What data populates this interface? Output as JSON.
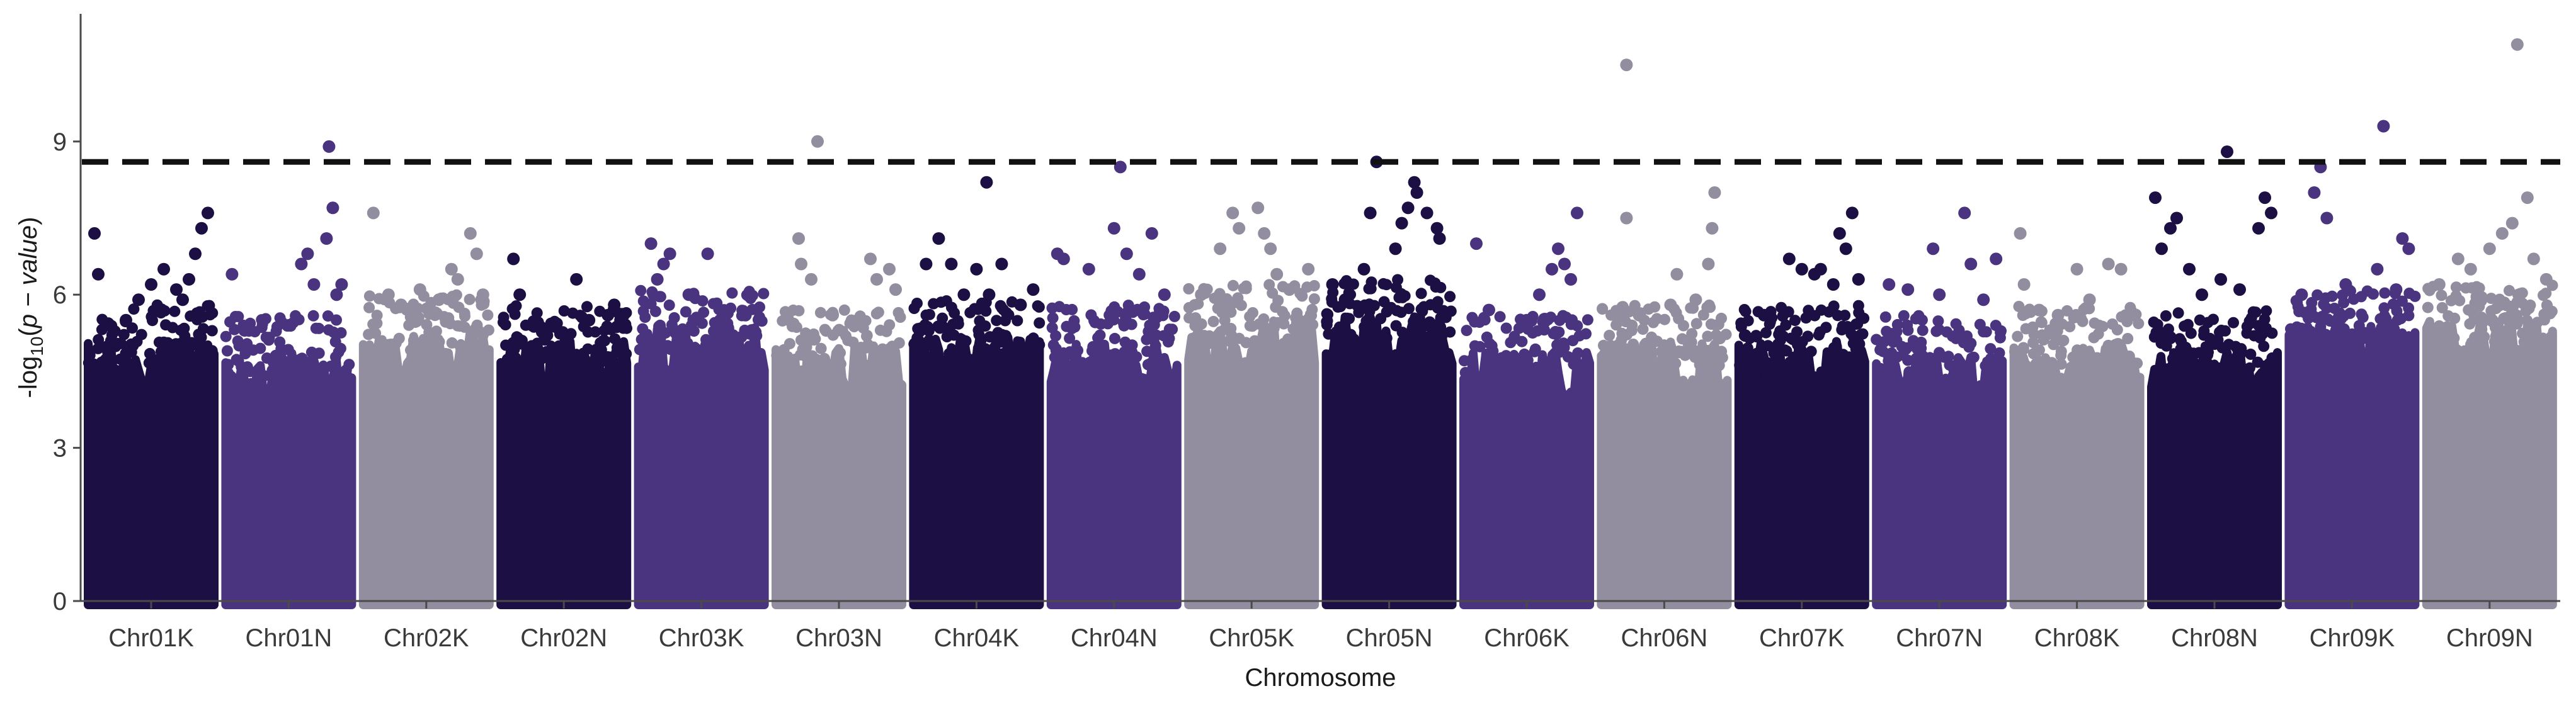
{
  "chart_data": {
    "type": "scatter",
    "subtype": "manhattan",
    "title": "",
    "xlabel": "Chromosome",
    "ylabel_parts": {
      "prefix": "-log",
      "subscript": "10",
      "open": "(",
      "italic": "p − value",
      "close": ")"
    },
    "ylim": [
      0,
      11.5
    ],
    "yticks": [
      0,
      3,
      6,
      9
    ],
    "grid": false,
    "legend": "none",
    "threshold": {
      "value": 8.6,
      "style": "dashed",
      "color": "#111111"
    },
    "palette": [
      "#1b0f43",
      "#4a3480",
      "#928e9f"
    ],
    "categories": [
      "Chr01K",
      "Chr01N",
      "Chr02K",
      "Chr02N",
      "Chr03K",
      "Chr03N",
      "Chr04K",
      "Chr04N",
      "Chr05K",
      "Chr05N",
      "Chr06K",
      "Chr06N",
      "Chr07K",
      "Chr07N",
      "Chr08K",
      "Chr08N",
      "Chr09K",
      "Chr09N"
    ],
    "series": [
      {
        "category": "Chr01K",
        "color_index": 0,
        "bulk_top": 4.6,
        "peak": 7.6,
        "points": [
          [
            0.05,
            7.2
          ],
          [
            0.08,
            6.4
          ],
          [
            0.4,
            5.9
          ],
          [
            0.5,
            6.2
          ],
          [
            0.6,
            6.5
          ],
          [
            0.7,
            6.1
          ],
          [
            0.75,
            5.9
          ],
          [
            0.8,
            6.3
          ],
          [
            0.85,
            6.8
          ],
          [
            0.9,
            7.3
          ],
          [
            0.95,
            7.6
          ],
          [
            0.3,
            5.5
          ]
        ]
      },
      {
        "category": "Chr01N",
        "color_index": 1,
        "bulk_top": 4.4,
        "peak": 8.9,
        "points": [
          [
            0.05,
            6.4
          ],
          [
            0.15,
            5.3
          ],
          [
            0.5,
            5.4
          ],
          [
            0.6,
            6.6
          ],
          [
            0.65,
            6.8
          ],
          [
            0.7,
            6.2
          ],
          [
            0.8,
            7.1
          ],
          [
            0.85,
            7.7
          ],
          [
            0.82,
            8.9
          ],
          [
            0.88,
            6.0
          ],
          [
            0.92,
            6.2
          ],
          [
            0.4,
            4.8
          ]
        ]
      },
      {
        "category": "Chr02K",
        "color_index": 2,
        "bulk_top": 4.8,
        "peak": 7.6,
        "points": [
          [
            0.08,
            7.6
          ],
          [
            0.2,
            6.0
          ],
          [
            0.3,
            5.8
          ],
          [
            0.45,
            6.1
          ],
          [
            0.6,
            5.9
          ],
          [
            0.7,
            6.5
          ],
          [
            0.75,
            6.3
          ],
          [
            0.85,
            7.2
          ],
          [
            0.9,
            6.8
          ],
          [
            0.95,
            6.0
          ]
        ]
      },
      {
        "category": "Chr02N",
        "color_index": 0,
        "bulk_top": 4.6,
        "peak": 6.7,
        "points": [
          [
            0.1,
            6.7
          ],
          [
            0.15,
            6.0
          ],
          [
            0.25,
            5.4
          ],
          [
            0.6,
            6.3
          ],
          [
            0.7,
            5.5
          ],
          [
            0.85,
            5.6
          ],
          [
            0.9,
            5.8
          ],
          [
            0.95,
            5.5
          ]
        ]
      },
      {
        "category": "Chr03K",
        "color_index": 1,
        "bulk_top": 4.9,
        "peak": 7.0,
        "points": [
          [
            0.1,
            7.0
          ],
          [
            0.15,
            6.3
          ],
          [
            0.2,
            6.6
          ],
          [
            0.25,
            6.8
          ],
          [
            0.4,
            6.0
          ],
          [
            0.55,
            6.8
          ],
          [
            0.65,
            5.5
          ],
          [
            0.75,
            5.2
          ],
          [
            0.85,
            5.6
          ],
          [
            0.9,
            5.3
          ]
        ]
      },
      {
        "category": "Chr03N",
        "color_index": 2,
        "bulk_top": 4.5,
        "peak": 9.0,
        "points": [
          [
            0.18,
            7.1
          ],
          [
            0.2,
            6.6
          ],
          [
            0.28,
            6.3
          ],
          [
            0.33,
            9.0
          ],
          [
            0.45,
            5.6
          ],
          [
            0.65,
            5.5
          ],
          [
            0.75,
            6.7
          ],
          [
            0.8,
            6.3
          ],
          [
            0.9,
            6.5
          ],
          [
            0.95,
            6.1
          ]
        ]
      },
      {
        "category": "Chr04K",
        "color_index": 0,
        "bulk_top": 4.7,
        "peak": 8.2,
        "points": [
          [
            0.1,
            6.6
          ],
          [
            0.2,
            7.1
          ],
          [
            0.3,
            6.6
          ],
          [
            0.4,
            6.0
          ],
          [
            0.5,
            6.5
          ],
          [
            0.6,
            6.0
          ],
          [
            0.7,
            6.6
          ],
          [
            0.58,
            8.2
          ],
          [
            0.85,
            5.8
          ],
          [
            0.95,
            6.1
          ]
        ]
      },
      {
        "category": "Chr04N",
        "color_index": 1,
        "bulk_top": 4.6,
        "peak": 8.5,
        "points": [
          [
            0.05,
            6.8
          ],
          [
            0.1,
            6.7
          ],
          [
            0.3,
            6.5
          ],
          [
            0.5,
            7.3
          ],
          [
            0.55,
            8.5
          ],
          [
            0.6,
            6.8
          ],
          [
            0.7,
            6.4
          ],
          [
            0.8,
            7.2
          ],
          [
            0.9,
            6.0
          ]
        ]
      },
      {
        "category": "Chr05K",
        "color_index": 2,
        "bulk_top": 5.0,
        "peak": 7.7,
        "points": [
          [
            0.1,
            6.0
          ],
          [
            0.25,
            6.9
          ],
          [
            0.35,
            7.6
          ],
          [
            0.4,
            7.3
          ],
          [
            0.55,
            7.7
          ],
          [
            0.6,
            7.2
          ],
          [
            0.65,
            6.9
          ],
          [
            0.7,
            6.4
          ],
          [
            0.8,
            6.1
          ],
          [
            0.95,
            6.5
          ]
        ]
      },
      {
        "category": "Chr05N",
        "color_index": 0,
        "bulk_top": 5.1,
        "peak": 8.6,
        "points": [
          [
            0.05,
            6.2
          ],
          [
            0.15,
            5.9
          ],
          [
            0.3,
            6.5
          ],
          [
            0.35,
            7.6
          ],
          [
            0.4,
            8.6
          ],
          [
            0.55,
            6.9
          ],
          [
            0.6,
            7.4
          ],
          [
            0.65,
            7.7
          ],
          [
            0.7,
            8.2
          ],
          [
            0.72,
            8.0
          ],
          [
            0.8,
            7.6
          ],
          [
            0.88,
            7.3
          ],
          [
            0.9,
            7.1
          ]
        ]
      },
      {
        "category": "Chr06K",
        "color_index": 1,
        "bulk_top": 4.4,
        "peak": 7.6,
        "points": [
          [
            0.1,
            7.0
          ],
          [
            0.2,
            5.7
          ],
          [
            0.5,
            5.5
          ],
          [
            0.6,
            6.0
          ],
          [
            0.7,
            6.5
          ],
          [
            0.75,
            6.9
          ],
          [
            0.8,
            6.6
          ],
          [
            0.85,
            6.3
          ],
          [
            0.9,
            7.6
          ]
        ]
      },
      {
        "category": "Chr06N",
        "color_index": 2,
        "bulk_top": 4.6,
        "peak": 10.5,
        "points": [
          [
            0.2,
            10.5
          ],
          [
            0.2,
            7.5
          ],
          [
            0.3,
            5.6
          ],
          [
            0.55,
            5.8
          ],
          [
            0.6,
            6.4
          ],
          [
            0.75,
            5.9
          ],
          [
            0.85,
            6.6
          ],
          [
            0.88,
            7.3
          ],
          [
            0.9,
            8.0
          ]
        ]
      },
      {
        "category": "Chr07K",
        "color_index": 0,
        "bulk_top": 4.6,
        "peak": 7.6,
        "points": [
          [
            0.05,
            5.2
          ],
          [
            0.2,
            5.6
          ],
          [
            0.4,
            6.7
          ],
          [
            0.5,
            6.5
          ],
          [
            0.6,
            6.4
          ],
          [
            0.65,
            6.5
          ],
          [
            0.75,
            6.2
          ],
          [
            0.8,
            7.2
          ],
          [
            0.85,
            6.9
          ],
          [
            0.9,
            7.6
          ],
          [
            0.95,
            6.3
          ]
        ]
      },
      {
        "category": "Chr07N",
        "color_index": 1,
        "bulk_top": 4.4,
        "peak": 7.6,
        "points": [
          [
            0.1,
            6.2
          ],
          [
            0.25,
            6.1
          ],
          [
            0.45,
            6.9
          ],
          [
            0.5,
            6.0
          ],
          [
            0.7,
            7.6
          ],
          [
            0.75,
            6.6
          ],
          [
            0.85,
            5.9
          ],
          [
            0.95,
            6.7
          ]
        ]
      },
      {
        "category": "Chr08K",
        "color_index": 2,
        "bulk_top": 4.6,
        "peak": 7.2,
        "points": [
          [
            0.05,
            7.2
          ],
          [
            0.08,
            6.2
          ],
          [
            0.2,
            5.7
          ],
          [
            0.35,
            5.6
          ],
          [
            0.5,
            6.5
          ],
          [
            0.6,
            5.9
          ],
          [
            0.75,
            6.6
          ],
          [
            0.85,
            6.5
          ],
          [
            0.95,
            5.6
          ]
        ]
      },
      {
        "category": "Chr08N",
        "color_index": 0,
        "bulk_top": 4.5,
        "peak": 8.8,
        "points": [
          [
            0.03,
            7.9
          ],
          [
            0.08,
            6.9
          ],
          [
            0.15,
            7.3
          ],
          [
            0.2,
            7.5
          ],
          [
            0.3,
            6.5
          ],
          [
            0.4,
            6.0
          ],
          [
            0.55,
            6.3
          ],
          [
            0.6,
            8.8
          ],
          [
            0.7,
            6.1
          ],
          [
            0.85,
            7.3
          ],
          [
            0.9,
            7.9
          ],
          [
            0.95,
            7.6
          ]
        ]
      },
      {
        "category": "Chr09K",
        "color_index": 1,
        "bulk_top": 4.9,
        "peak": 9.3,
        "points": [
          [
            0.1,
            6.0
          ],
          [
            0.2,
            8.0
          ],
          [
            0.25,
            8.5
          ],
          [
            0.3,
            7.5
          ],
          [
            0.45,
            6.2
          ],
          [
            0.7,
            6.5
          ],
          [
            0.75,
            9.3
          ],
          [
            0.85,
            6.1
          ],
          [
            0.9,
            7.1
          ],
          [
            0.95,
            6.9
          ]
        ]
      },
      {
        "category": "Chr09N",
        "color_index": 2,
        "bulk_top": 5.0,
        "peak": 10.9,
        "points": [
          [
            0.1,
            6.2
          ],
          [
            0.25,
            6.7
          ],
          [
            0.35,
            6.5
          ],
          [
            0.5,
            6.9
          ],
          [
            0.6,
            7.2
          ],
          [
            0.68,
            7.4
          ],
          [
            0.72,
            10.9
          ],
          [
            0.8,
            7.9
          ],
          [
            0.85,
            6.7
          ],
          [
            0.95,
            6.3
          ]
        ]
      }
    ]
  }
}
